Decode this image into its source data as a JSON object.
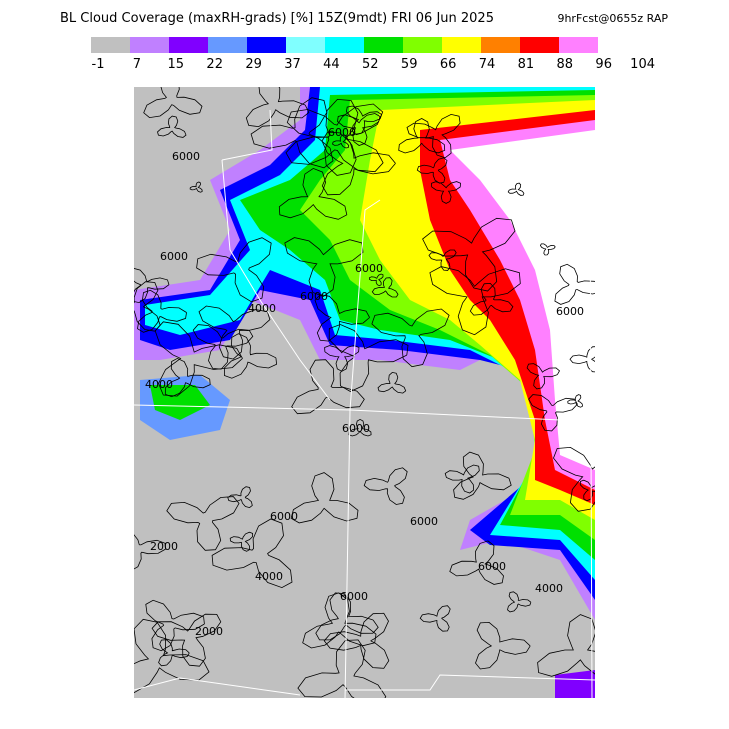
{
  "map": {
    "title": "BL Cloud Coverage (maxRH-grads) [%] 15Z(9mdt) FRI 06 Jun 2025",
    "source": "9hrFcst@0655z RAP",
    "colorbar": {
      "colors": [
        "#c0c0c0",
        "#c080ff",
        "#8000ff",
        "#6699ff",
        "#0000ff",
        "#80ffff",
        "#00ffff",
        "#00e000",
        "#80ff00",
        "#ffff00",
        "#ff8000",
        "#ff0000",
        "#ff80ff"
      ],
      "labels": [
        -1,
        7,
        15,
        22,
        29,
        37,
        44,
        52,
        59,
        66,
        74,
        81,
        88,
        96,
        104
      ]
    },
    "contour_labels": [
      "6000",
      "6000",
      "6000",
      "6000",
      "4000",
      "4000",
      "6000",
      "6000",
      "6000",
      "2000",
      "4000",
      "2000",
      "6000",
      "6000",
      "4000",
      "6000",
      "6000"
    ]
  }
}
